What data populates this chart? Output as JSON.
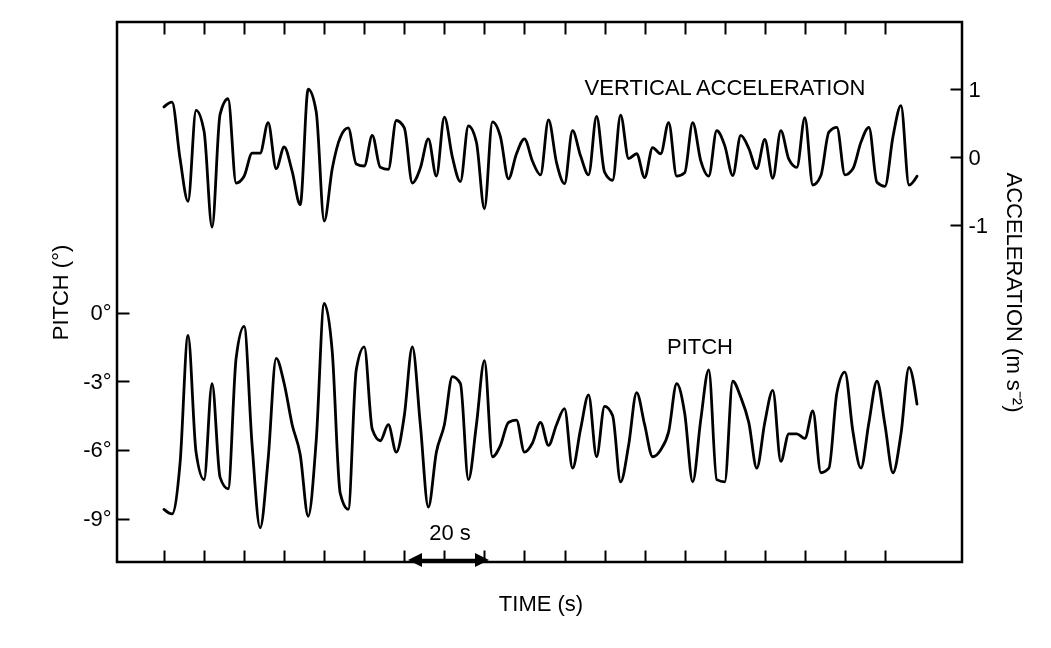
{
  "chart_data": {
    "type": "line",
    "xlabel": "TIME (s)",
    "ylabel": "PITCH (°)",
    "y2label": "ACCELERATION (m s⁻²)",
    "annotations": [
      "20 s"
    ],
    "categories": [
      null,
      null,
      null,
      null,
      null,
      null,
      null,
      null,
      null,
      null,
      null,
      null,
      null,
      null,
      null,
      null,
      null,
      null,
      null,
      null,
      null,
      null,
      null,
      null,
      null,
      null,
      null,
      null,
      null,
      null,
      null,
      null,
      null,
      null,
      null,
      null,
      null,
      null,
      null,
      null,
      null,
      null,
      null,
      null,
      null,
      null,
      null,
      null,
      null,
      null,
      null,
      null,
      null,
      null,
      null,
      null,
      null,
      null,
      null,
      null,
      null,
      null,
      null,
      null,
      null,
      null,
      null,
      null,
      null,
      null,
      null,
      null,
      null,
      null,
      null,
      null,
      null,
      null,
      null,
      null,
      null,
      null,
      null,
      null,
      null,
      null,
      null,
      null,
      null,
      null,
      null,
      null,
      null,
      null,
      null
    ],
    "ylim": [
      -10.9,
      12.7
    ],
    "yticks": [
      {
        "value": -9,
        "label": "-9°"
      },
      {
        "value": -6,
        "label": "-6°"
      },
      {
        "value": -3,
        "label": "-3°"
      },
      {
        "value": 0,
        "label": "0°"
      }
    ],
    "y2lim": [
      -5.96,
      1.99
    ],
    "y2ticks": [
      -1,
      0,
      1
    ],
    "series": [
      {
        "name": "PITCH",
        "color": "#000000",
        "values": [
          -8.6,
          -8.8,
          -6.6,
          -1.0,
          -6.1,
          -7.3,
          -3.1,
          -7.2,
          -7.7,
          -2.0,
          -0.6,
          -5.8,
          -9.4,
          -6.4,
          -2.0,
          -3.1,
          -4.9,
          -6.2,
          -8.9,
          -5.6,
          0.4,
          -1.7,
          -7.9,
          -8.6,
          -2.5,
          -1.5,
          -5.1,
          -5.6,
          -4.9,
          -6.1,
          -4.5,
          -1.5,
          -4.9,
          -8.5,
          -6.1,
          -4.9,
          -2.8,
          -3.1,
          -7.3,
          -4.9,
          -2.1,
          -6.3,
          -5.8,
          -4.8,
          -4.7,
          -6.1,
          -5.7,
          -4.8,
          -5.8,
          -4.9,
          -4.2,
          -6.8,
          -5.1,
          -3.6,
          -6.3,
          -4.1,
          -4.5,
          -7.4,
          -5.8,
          -3.5,
          -4.9,
          -6.3,
          -6.0,
          -5.2,
          -3.1,
          -4.4,
          -7.4,
          -4.7,
          -2.5,
          -7.3,
          -7.4,
          -3.0,
          -3.7,
          -4.8,
          -6.8,
          -4.8,
          -3.4,
          -6.5,
          -5.3,
          -5.3,
          -5.5,
          -4.3,
          -7.0,
          -6.8,
          -3.5,
          -2.6,
          -5.2,
          -6.8,
          -4.8,
          -3.0,
          -4.9,
          -7.0,
          -5.3,
          -2.4,
          -4.0
        ]
      },
      {
        "name": "VERTICAL ACCELERATION",
        "color": "#000000",
        "axis": "y2",
        "values": [
          0.74,
          0.81,
          -0.02,
          -0.65,
          0.69,
          0.38,
          -1.03,
          0.63,
          0.86,
          -0.38,
          -0.28,
          0.06,
          0.06,
          0.51,
          -0.17,
          0.15,
          -0.21,
          -0.7,
          1.0,
          0.67,
          -0.94,
          -0.17,
          0.29,
          0.43,
          -0.1,
          -0.13,
          0.32,
          -0.15,
          -0.18,
          0.54,
          0.43,
          -0.38,
          -0.16,
          0.27,
          -0.28,
          0.59,
          0.0,
          -0.36,
          0.46,
          0.22,
          -0.76,
          0.52,
          0.3,
          -0.32,
          0.05,
          0.27,
          -0.06,
          -0.26,
          0.55,
          -0.08,
          -0.39,
          0.39,
          0.02,
          -0.26,
          0.6,
          -0.22,
          -0.34,
          0.62,
          -0.02,
          0.05,
          -0.3,
          0.14,
          0.05,
          0.51,
          -0.28,
          -0.23,
          0.51,
          -0.05,
          -0.28,
          0.39,
          0.17,
          -0.27,
          0.32,
          0.13,
          -0.17,
          0.26,
          -0.31,
          0.39,
          -0.03,
          -0.15,
          0.58,
          -0.41,
          -0.27,
          0.37,
          0.44,
          -0.26,
          -0.17,
          0.22,
          0.44,
          -0.37,
          -0.43,
          0.3,
          0.76,
          -0.41,
          -0.28
        ]
      }
    ]
  }
}
